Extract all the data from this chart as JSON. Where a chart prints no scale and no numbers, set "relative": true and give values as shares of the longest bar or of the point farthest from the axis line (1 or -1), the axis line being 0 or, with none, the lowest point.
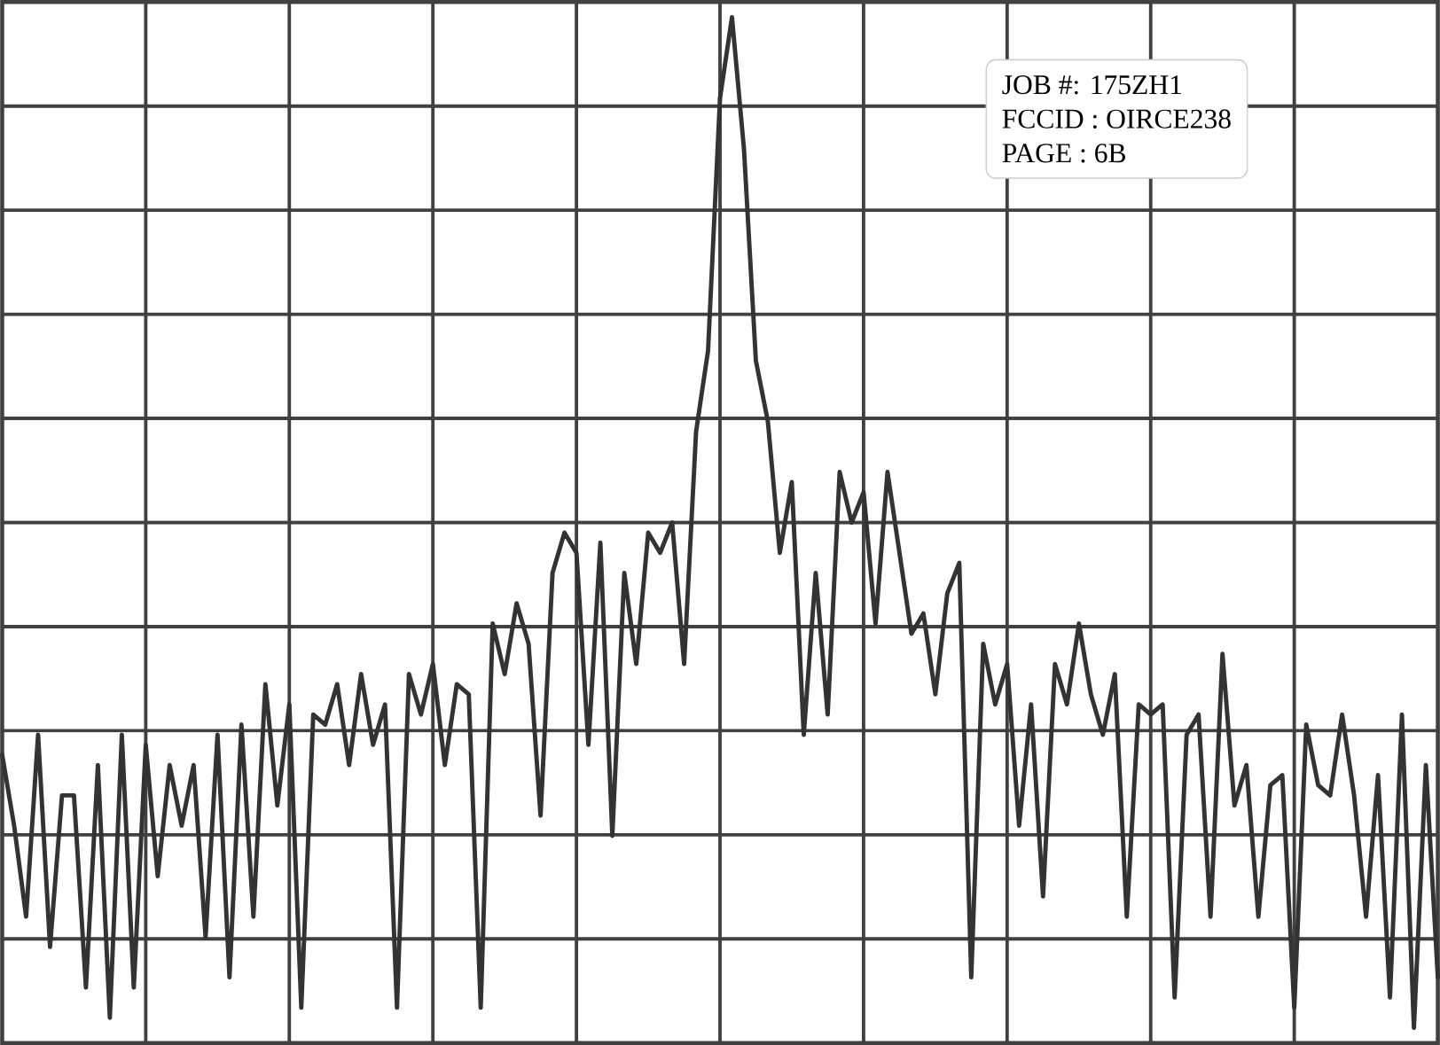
{
  "chart_data": {
    "type": "line",
    "relative": true,
    "grid": true,
    "color": "#333333",
    "annotations": [
      "JOB #: 175ZH1",
      "FCCID : OIRCE238",
      "PAGE : 6B"
    ],
    "categories": [
      null,
      null,
      null,
      null,
      null,
      null,
      null,
      null,
      null,
      null,
      null,
      null,
      null,
      null,
      null,
      null,
      null,
      null,
      null,
      null,
      null,
      null,
      null,
      null,
      null,
      null,
      null,
      null,
      null,
      null,
      null,
      null,
      null,
      null,
      null,
      null,
      null,
      null,
      null,
      null,
      null,
      null,
      null,
      null,
      null,
      null,
      null,
      null,
      null,
      null,
      null,
      null,
      null,
      null,
      null,
      null,
      null,
      null,
      null,
      null,
      null,
      null,
      null,
      null,
      null,
      null,
      null,
      null,
      null,
      null,
      null,
      null,
      null,
      null,
      null,
      null,
      null,
      null,
      null,
      null,
      null,
      null,
      null,
      null,
      null,
      null,
      null,
      null,
      null,
      null,
      null,
      null,
      null,
      null,
      null,
      null,
      null,
      null,
      null,
      null,
      null,
      null,
      null,
      null,
      null,
      null,
      null,
      null,
      null,
      null,
      null,
      null,
      null,
      null,
      null,
      null,
      null,
      null,
      null,
      null,
      null
    ],
    "values": [
      0.27,
      0.2,
      0.11,
      0.29,
      0.08,
      0.23,
      0.23,
      0.04,
      0.26,
      0.01,
      0.29,
      0.04,
      0.28,
      0.15,
      0.26,
      0.2,
      0.26,
      0.09,
      0.29,
      0.05,
      0.3,
      0.11,
      0.34,
      0.22,
      0.32,
      0.02,
      0.31,
      0.3,
      0.34,
      0.26,
      0.35,
      0.28,
      0.32,
      0.02,
      0.35,
      0.31,
      0.36,
      0.26,
      0.34,
      0.33,
      0.02,
      0.4,
      0.35,
      0.42,
      0.38,
      0.21,
      0.45,
      0.49,
      0.47,
      0.28,
      0.48,
      0.19,
      0.45,
      0.36,
      0.49,
      0.47,
      0.5,
      0.36,
      0.59,
      0.67,
      0.92,
      1,
      0.87,
      0.66,
      0.6,
      0.47,
      0.54,
      0.29,
      0.45,
      0.31,
      0.55,
      0.5,
      0.53,
      0.4,
      0.55,
      0.47,
      0.39,
      0.41,
      0.33,
      0.43,
      0.46,
      0.05,
      0.38,
      0.32,
      0.36,
      0.2,
      0.32,
      0.13,
      0.36,
      0.32,
      0.4,
      0.33,
      0.29,
      0.35,
      0.11,
      0.32,
      0.31,
      0.32,
      0.03,
      0.29,
      0.31,
      0.11,
      0.37,
      0.22,
      0.26,
      0.11,
      0.24,
      0.25,
      0.02,
      0.3,
      0.24,
      0.23,
      0.31,
      0.23,
      0.11,
      0.25,
      0.03,
      0.31,
      0,
      0.26,
      0.05
    ]
  }
}
